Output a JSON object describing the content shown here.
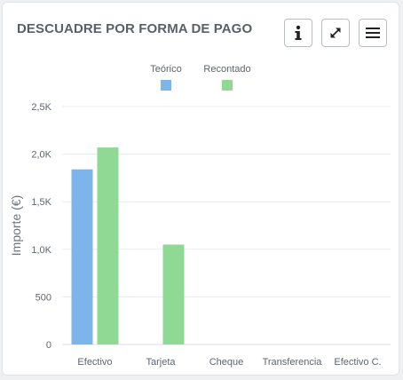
{
  "header": {
    "title": "DESCUADRE POR FORMA DE PAGO",
    "info_icon": "info-icon",
    "expand_icon": "expand-icon",
    "menu_icon": "hamburger-menu-icon"
  },
  "chart_data": {
    "type": "bar",
    "title": "DESCUADRE POR FORMA DE PAGO",
    "categories": [
      "Efectivo",
      "Tarjeta",
      "Cheque",
      "Transferencia",
      "Efectivo C."
    ],
    "series": [
      {
        "name": "Teórico",
        "color": "#7cb5ec",
        "values": [
          1840,
          null,
          null,
          null,
          null
        ]
      },
      {
        "name": "Recontado",
        "color": "#90d994",
        "values": [
          2070,
          1050,
          null,
          null,
          null
        ]
      }
    ],
    "ylabel": "Importe (€)",
    "xlabel": "",
    "ylim": [
      0,
      2500
    ],
    "yticks": [
      0,
      500,
      1000,
      1500,
      2000,
      2500
    ],
    "ytick_labels": [
      "0",
      "500",
      "1,0K",
      "1,5K",
      "2,0K",
      "2,5K"
    ],
    "grid": true,
    "legend_position": "top-center"
  }
}
